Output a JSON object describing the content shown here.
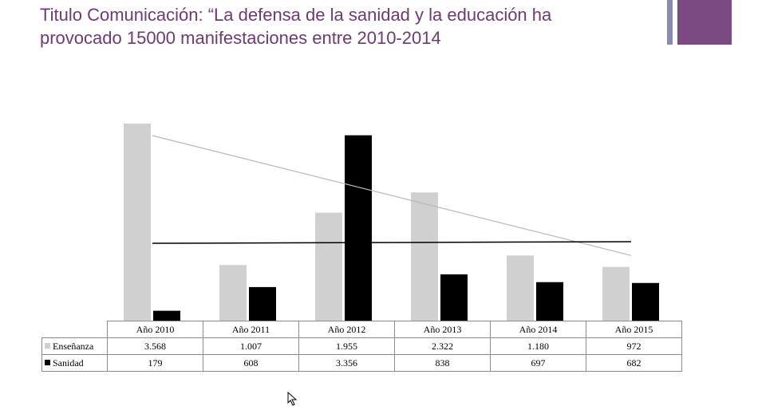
{
  "slide": {
    "title_line1": "Titulo Comunicación: “La defensa de la sanidad y la educación ha",
    "title_line2": "provocado 15000 manifestaciones entre 2010-2014"
  },
  "colors": {
    "title": "#6d3a74",
    "accent_block": "#7b4a82",
    "accent_thin": "#8a89b5",
    "enseñanza": "#d0d0d0",
    "sanidad": "#000000"
  },
  "chart_data": {
    "type": "bar",
    "categories": [
      "Año 2010",
      "Año 2011",
      "Año 2012",
      "Año 2013",
      "Año 2014",
      "Año 2015"
    ],
    "series": [
      {
        "name": "Enseñanza",
        "values": [
          3568,
          1007,
          1955,
          2322,
          1180,
          972
        ],
        "labels": [
          "3.568",
          "1.007",
          "1.955",
          "2.322",
          "1.180",
          "972"
        ],
        "color": "#d0d0d0"
      },
      {
        "name": "Sanidad",
        "values": [
          179,
          608,
          3356,
          838,
          697,
          682
        ],
        "labels": [
          "179",
          "608",
          "3.356",
          "838",
          "697",
          "682"
        ],
        "color": "#000000"
      }
    ],
    "trendlines": [
      {
        "series": "Enseñanza",
        "start": 3350,
        "end": 1180,
        "color": "#b8b8b8"
      },
      {
        "series": "Sanidad",
        "start": 1400,
        "end": 1430,
        "color": "#000000"
      }
    ],
    "ylim": [
      0,
      4000
    ],
    "legend": "data-table",
    "grid": false,
    "title": "",
    "xlabel": "",
    "ylabel": ""
  }
}
